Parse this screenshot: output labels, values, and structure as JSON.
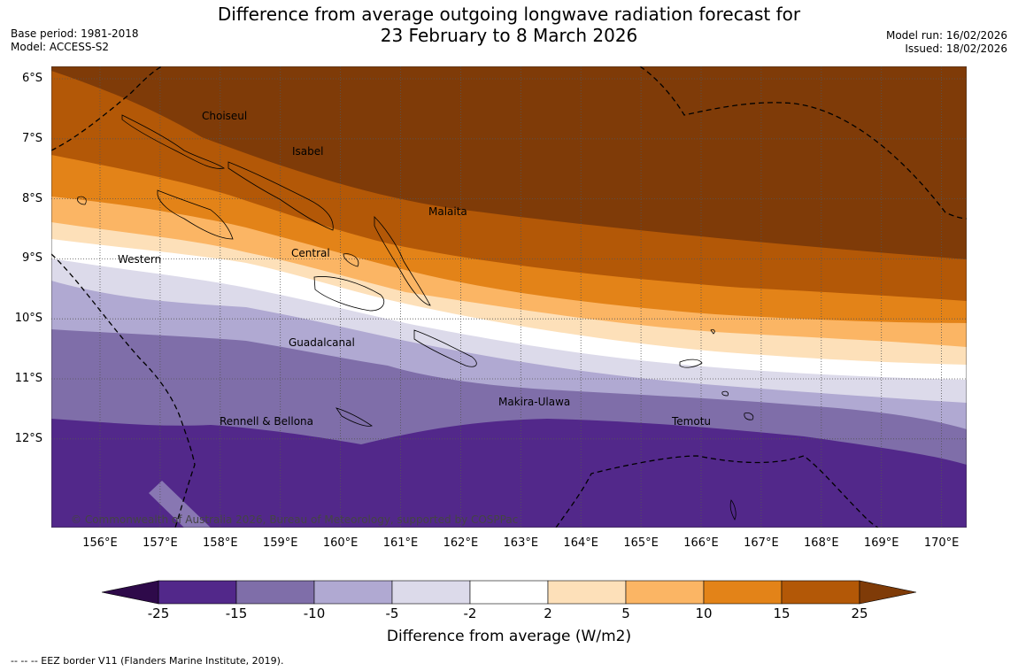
{
  "title": {
    "line1": "Difference from average outgoing longwave radiation forecast for",
    "line2": "23 February to 8 March 2026"
  },
  "meta_left": {
    "base_period": "Base period: 1981-2018",
    "model": "Model: ACCESS-S2"
  },
  "meta_right": {
    "model_run": "Model run: 16/02/2026",
    "issued": "Issued: 18/02/2026"
  },
  "lat_labels": [
    "6°S",
    "7°S",
    "8°S",
    "9°S",
    "10°S",
    "11°S",
    "12°S"
  ],
  "lon_labels": [
    "156°E",
    "157°E",
    "158°E",
    "159°E",
    "160°E",
    "161°E",
    "162°E",
    "163°E",
    "164°E",
    "165°E",
    "166°E",
    "167°E",
    "168°E",
    "169°E",
    "170°E"
  ],
  "places": {
    "choiseul": "Choiseul",
    "isabel": "Isabel",
    "malaita": "Malaita",
    "western": "Western",
    "central": "Central",
    "guadalcanal": "Guadalcanal",
    "makira": "Makira-Ulawa",
    "temotu": "Temotu",
    "rennell": "Rennell & Bellona"
  },
  "copyright": "© Commonwealth of Australia 2026, Bureau of Meteorology, supported by COSPPac",
  "colorbar": {
    "ticks": [
      "-25",
      "-15",
      "-10",
      "-5",
      "-2",
      "2",
      "5",
      "10",
      "15",
      "25"
    ],
    "colors": [
      "#52288a",
      "#7f6ea9",
      "#b0a9d2",
      "#dcdaea",
      "#ffffff",
      "#fde0b9",
      "#fbb564",
      "#e38318",
      "#b35807"
    ],
    "extend_low_color": "#2e0a4a",
    "extend_high_color": "#7f3b08",
    "label": "Difference from average (W/m2)"
  },
  "eez_note": "--  --  -- EEZ border V11 (Flanders Marine Institute, 2019)."
}
